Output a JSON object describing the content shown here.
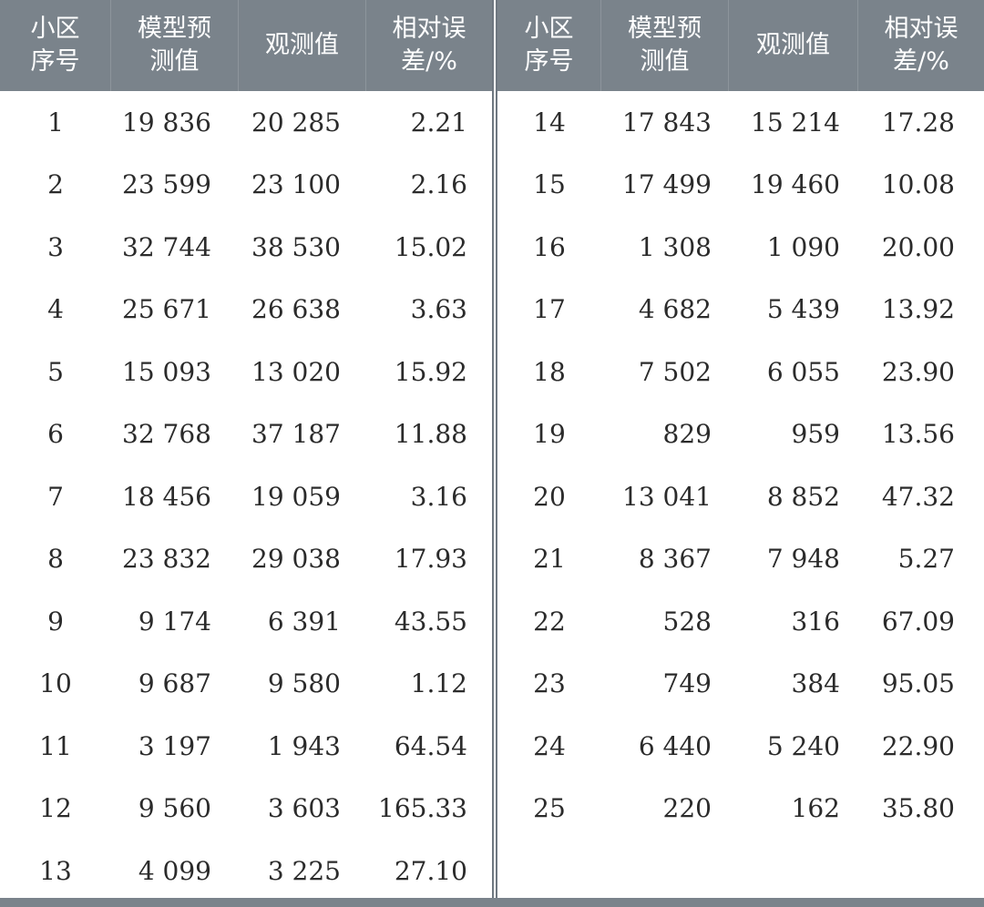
{
  "table": {
    "headers": [
      "小区\n序号",
      "模型预\n测值",
      "观测值",
      "相对误\n差/%"
    ],
    "left_rows": [
      [
        "1",
        "19 836",
        "20 285",
        "2.21"
      ],
      [
        "2",
        "23 599",
        "23 100",
        "2.16"
      ],
      [
        "3",
        "32 744",
        "38 530",
        "15.02"
      ],
      [
        "4",
        "25 671",
        "26 638",
        "3.63"
      ],
      [
        "5",
        "15 093",
        "13 020",
        "15.92"
      ],
      [
        "6",
        "32 768",
        "37 187",
        "11.88"
      ],
      [
        "7",
        "18 456",
        "19 059",
        "3.16"
      ],
      [
        "8",
        "23 832",
        "29 038",
        "17.93"
      ],
      [
        "9",
        "9 174",
        "6 391",
        "43.55"
      ],
      [
        "10",
        "9 687",
        "9 580",
        "1.12"
      ],
      [
        "11",
        "3 197",
        "1 943",
        "64.54"
      ],
      [
        "12",
        "9 560",
        "3 603",
        "165.33"
      ],
      [
        "13",
        "4 099",
        "3 225",
        "27.10"
      ]
    ],
    "right_rows": [
      [
        "14",
        "17 843",
        "15 214",
        "17.28"
      ],
      [
        "15",
        "17 499",
        "19 460",
        "10.08"
      ],
      [
        "16",
        "1 308",
        "1 090",
        "20.00"
      ],
      [
        "17",
        "4 682",
        "5 439",
        "13.92"
      ],
      [
        "18",
        "7 502",
        "6 055",
        "23.90"
      ],
      [
        "19",
        "829",
        "959",
        "13.56"
      ],
      [
        "20",
        "13 041",
        "8 852",
        "47.32"
      ],
      [
        "21",
        "8 367",
        "7 948",
        "5.27"
      ],
      [
        "22",
        "528",
        "316",
        "67.09"
      ],
      [
        "23",
        "749",
        "384",
        "95.05"
      ],
      [
        "24",
        "6 440",
        "5 240",
        "22.90"
      ],
      [
        "25",
        "220",
        "162",
        "35.80"
      ]
    ]
  }
}
